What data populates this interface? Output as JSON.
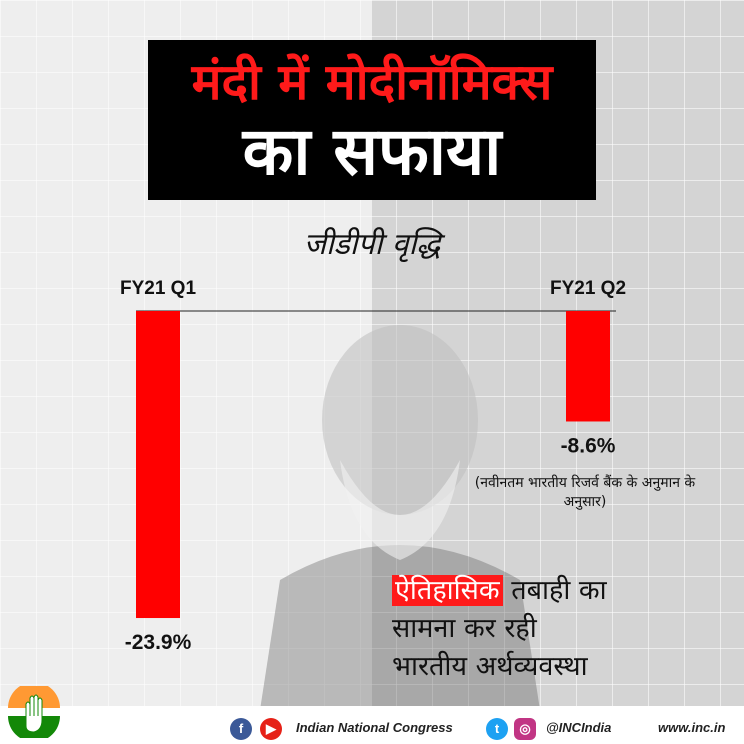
{
  "title_line1": "मंदी में मोदीनॉमिक्स",
  "title_line2": "का सफाया",
  "chart_data": {
    "type": "bar",
    "title": "जीडीपी वृद्धि",
    "categories": [
      "FY21 Q1",
      "FY21 Q2"
    ],
    "values": [
      -23.9,
      -8.6
    ],
    "value_labels": [
      "-23.9%",
      "-8.6%"
    ],
    "bar_color": "#ff0000",
    "ylim": [
      -25,
      0
    ],
    "grid": false,
    "legend": "none"
  },
  "note": "(नवीनतम भारतीय रिजर्व बैंक के अनुमान के अनुसार)",
  "caption": {
    "highlight": "ऐतिहासिक",
    "rest_line1": " तबाही का",
    "line2": "सामना कर रही",
    "line3": "भारतीय अर्थव्यवस्था"
  },
  "footer": {
    "org": "Indian National Congress",
    "handle": "@INCIndia",
    "website": "www.inc.in",
    "icons": [
      "facebook-icon",
      "youtube-icon",
      "twitter-icon",
      "instagram-icon"
    ]
  },
  "colors": {
    "accent": "#ff1a1a",
    "title_bg": "#000000"
  }
}
